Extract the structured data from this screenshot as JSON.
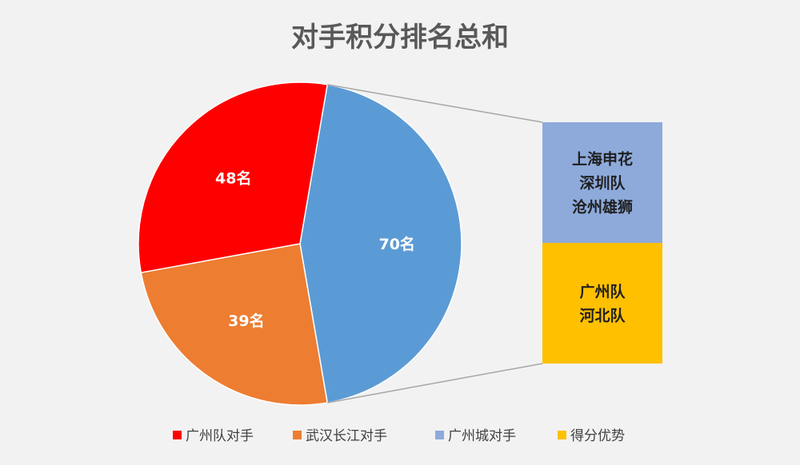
{
  "chart_data": {
    "type": "pie",
    "title": "对手积分排名总和",
    "slices": [
      {
        "label": "广州队对手",
        "value": 48,
        "display": "48名",
        "color": "#ff0000"
      },
      {
        "label": "武汉长江对手",
        "value": 39,
        "display": "39名",
        "color": "#ed7d31"
      },
      {
        "label": "广州城对手",
        "value": 70,
        "display": "70名",
        "color": "#5b9bd5"
      }
    ],
    "breakdown": {
      "of_slice": "广州城对手",
      "segments": [
        {
          "label": "广州城对手",
          "lines": [
            "上海申花",
            "深圳队",
            "沧州雄狮"
          ],
          "color": "#8eaadb",
          "share": 0.5
        },
        {
          "label": "得分优势",
          "lines": [
            "广州队",
            "河北队"
          ],
          "color": "#ffc000",
          "share": 0.5
        }
      ]
    },
    "legend": {
      "position": "bottom",
      "entries": [
        {
          "label": "广州队对手",
          "color": "#ff0000"
        },
        {
          "label": "武汉长江对手",
          "color": "#ed7d31"
        },
        {
          "label": "广州城对手",
          "color": "#8eaadb"
        },
        {
          "label": "得分优势",
          "color": "#ffc000"
        }
      ]
    }
  }
}
